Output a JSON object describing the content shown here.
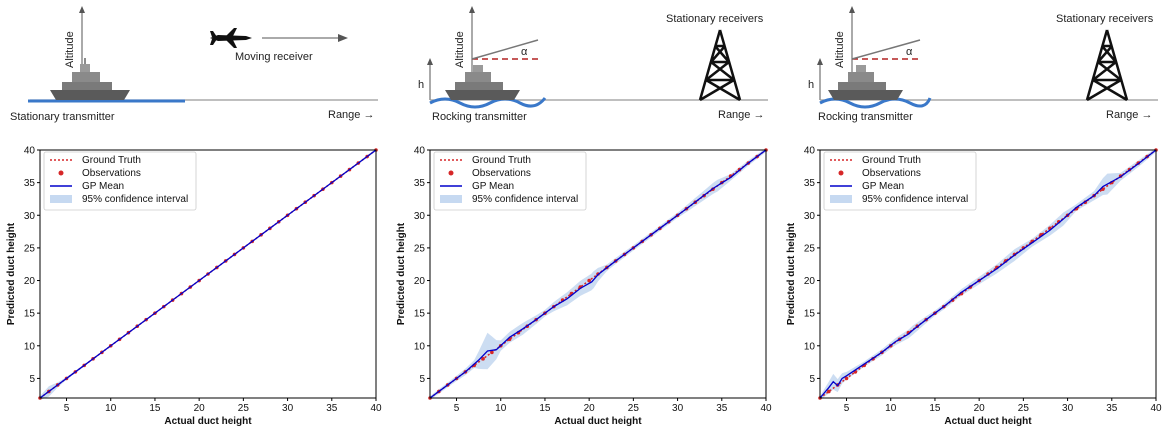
{
  "colors": {
    "ground_truth": "#d62728",
    "observations": "#d62728",
    "gp_mean": "#0000cc",
    "confidence": "#c6d9f1",
    "sea": "#3a78c9",
    "ship": "#5a5a5a"
  },
  "scenes": [
    {
      "transmitter_label": "Stationary transmitter",
      "altitude_label": "Altitude",
      "range_label": "Range →",
      "receiver_label": "Moving receiver",
      "receiver_icon": "airplane-icon"
    },
    {
      "transmitter_label": "Rocking transmitter",
      "altitude_label": "Altitude",
      "range_label": "Range →",
      "receiver_label": "Stationary receivers",
      "angle_label": "α",
      "height_label": "h",
      "receiver_icon": "tower-icon"
    },
    {
      "transmitter_label": "Rocking transmitter",
      "altitude_label": "Altitude",
      "range_label": "Range →",
      "receiver_label": "Stationary receivers",
      "angle_label": "α",
      "height_label": "h",
      "receiver_icon": "tower-icon"
    }
  ],
  "chart_data": [
    {
      "type": "line",
      "xlabel": "Actual duct height",
      "ylabel": "Predicted duct height",
      "xlim": [
        2,
        40
      ],
      "ylim": [
        2,
        40
      ],
      "xticks": [
        5,
        10,
        15,
        20,
        25,
        30,
        35,
        40
      ],
      "yticks": [
        5,
        10,
        15,
        20,
        25,
        30,
        35,
        40
      ],
      "legend_position": "top-left",
      "legend": [
        "Ground Truth",
        "Observations",
        "GP Mean",
        "95% confidence interval"
      ],
      "series": [
        {
          "name": "Ground Truth",
          "x": [
            2,
            40
          ],
          "y": [
            2,
            40
          ]
        },
        {
          "name": "Observations",
          "x": [
            2,
            3,
            4,
            5,
            6,
            7,
            8,
            9,
            10,
            11,
            12,
            13,
            14,
            15,
            16,
            17,
            18,
            19,
            20,
            21,
            22,
            23,
            24,
            25,
            26,
            27,
            28,
            29,
            30,
            31,
            32,
            33,
            34,
            35,
            36,
            37,
            38,
            39,
            40
          ],
          "y": [
            2,
            3,
            4,
            5,
            6,
            7,
            8,
            9,
            10,
            11,
            12,
            13,
            14,
            15,
            16,
            17,
            18,
            19,
            20,
            21,
            22,
            23,
            24,
            25,
            26,
            27,
            28,
            29,
            30,
            31,
            32,
            33,
            34,
            35,
            36,
            37,
            38,
            39,
            40
          ]
        },
        {
          "name": "GP Mean",
          "x": [
            2,
            5,
            10,
            15,
            20,
            25,
            30,
            35,
            40
          ],
          "y": [
            2,
            5,
            10,
            15,
            20,
            25,
            30,
            35,
            40
          ]
        }
      ],
      "confidence_band": {
        "x": [
          2,
          3,
          4,
          5,
          10,
          15,
          20,
          25,
          30,
          35,
          40
        ],
        "halfwidth": [
          0.3,
          0.8,
          0.4,
          0.2,
          0.1,
          0.1,
          0.1,
          0.1,
          0.1,
          0.1,
          0.2
        ]
      }
    },
    {
      "type": "line",
      "xlabel": "Actual duct height",
      "ylabel": "Predicted duct height",
      "xlim": [
        2,
        40
      ],
      "ylim": [
        2,
        40
      ],
      "xticks": [
        5,
        10,
        15,
        20,
        25,
        30,
        35,
        40
      ],
      "yticks": [
        5,
        10,
        15,
        20,
        25,
        30,
        35,
        40
      ],
      "legend_position": "top-left",
      "legend": [
        "Ground Truth",
        "Observations",
        "GP Mean",
        "95% confidence interval"
      ],
      "series": [
        {
          "name": "Ground Truth",
          "x": [
            2,
            40
          ],
          "y": [
            2,
            40
          ]
        },
        {
          "name": "Observations",
          "x": [
            2,
            3,
            4,
            5,
            6,
            7,
            8,
            9,
            10,
            11,
            12,
            13,
            14,
            15,
            16,
            17,
            18,
            19,
            20,
            21,
            22,
            23,
            24,
            25,
            26,
            27,
            28,
            29,
            30,
            31,
            32,
            33,
            34,
            35,
            36,
            37,
            38,
            39,
            40
          ],
          "y": [
            2,
            3,
            4,
            5,
            6,
            7,
            8,
            9,
            10,
            11,
            12,
            13,
            14,
            15,
            16,
            17,
            18,
            19,
            20,
            21,
            22,
            23,
            24,
            25,
            26,
            27,
            28,
            29,
            30,
            31,
            32,
            33,
            34,
            35,
            36,
            37,
            38,
            39,
            40
          ]
        },
        {
          "name": "GP Mean",
          "x": [
            2,
            4,
            6,
            7.5,
            8.5,
            9.5,
            11,
            12.5,
            14,
            16,
            17.5,
            19,
            20.3,
            21,
            23,
            25,
            28,
            31,
            34,
            36,
            38,
            40
          ],
          "y": [
            2,
            4,
            6,
            7.8,
            9.2,
            9.4,
            11.3,
            12.6,
            14.0,
            16.0,
            17.2,
            18.8,
            19.8,
            20.9,
            23.0,
            25.0,
            28.0,
            31.0,
            34.1,
            35.8,
            38.0,
            40
          ]
        }
      ],
      "confidence_band": {
        "x": [
          2,
          5,
          7,
          8.5,
          10,
          12.5,
          15,
          17.5,
          20.5,
          22,
          25,
          30,
          34.5,
          36,
          40
        ],
        "halfwidth": [
          0.3,
          0.4,
          0.6,
          2.8,
          0.8,
          0.9,
          0.5,
          1.0,
          1.3,
          0.5,
          0.4,
          0.4,
          0.9,
          0.5,
          0.3
        ]
      }
    },
    {
      "type": "line",
      "xlabel": "Actual duct height",
      "ylabel": "Predicted duct height",
      "xlim": [
        2,
        40
      ],
      "ylim": [
        2,
        40
      ],
      "xticks": [
        5,
        10,
        15,
        20,
        25,
        30,
        35,
        40
      ],
      "yticks": [
        5,
        10,
        15,
        20,
        25,
        30,
        35,
        40
      ],
      "legend_position": "top-left",
      "legend": [
        "Ground Truth",
        "Observations",
        "GP Mean",
        "95% confidence interval"
      ],
      "series": [
        {
          "name": "Ground Truth",
          "x": [
            2,
            40
          ],
          "y": [
            2,
            40
          ]
        },
        {
          "name": "Observations",
          "x": [
            2,
            3,
            4,
            5,
            6,
            7,
            8,
            9,
            10,
            11,
            12,
            13,
            14,
            15,
            16,
            17,
            18,
            19,
            20,
            21,
            22,
            23,
            24,
            25,
            26,
            27,
            28,
            29,
            30,
            31,
            32,
            33,
            34,
            35,
            36,
            37,
            38,
            39,
            40
          ],
          "y": [
            2,
            3,
            4,
            5,
            6,
            7,
            8,
            9,
            10,
            11,
            12,
            13,
            14,
            15,
            16,
            17,
            18,
            19,
            20,
            21,
            22,
            23,
            24,
            25,
            26,
            27,
            28,
            29,
            30,
            31,
            32,
            33,
            34,
            35,
            36,
            37,
            38,
            39,
            40
          ]
        },
        {
          "name": "GP Mean",
          "x": [
            2,
            3,
            3.5,
            4,
            4.5,
            5,
            7,
            9,
            10.5,
            12,
            12.5,
            14,
            16,
            18,
            20,
            22,
            24,
            26,
            28,
            29.5,
            31,
            33,
            34,
            36,
            38,
            40
          ],
          "y": [
            2,
            3.6,
            4.5,
            3.9,
            5.0,
            5.4,
            7.2,
            9.0,
            10.6,
            11.8,
            12.4,
            14.0,
            16.0,
            18.2,
            20.0,
            21.8,
            23.9,
            25.8,
            27.7,
            29.4,
            31.2,
            33.0,
            34.4,
            35.9,
            37.9,
            40
          ]
        }
      ],
      "confidence_band": {
        "x": [
          2,
          3.5,
          5,
          7,
          10,
          12.5,
          15,
          18,
          20.5,
          22,
          24,
          26,
          29.5,
          31,
          33,
          34.5,
          36,
          38,
          40
        ],
        "halfwidth": [
          0.3,
          1.2,
          0.6,
          0.4,
          0.5,
          0.7,
          0.4,
          0.5,
          0.6,
          0.7,
          0.9,
          0.6,
          1.0,
          0.5,
          0.7,
          1.6,
          0.6,
          0.5,
          0.3
        ]
      }
    }
  ]
}
